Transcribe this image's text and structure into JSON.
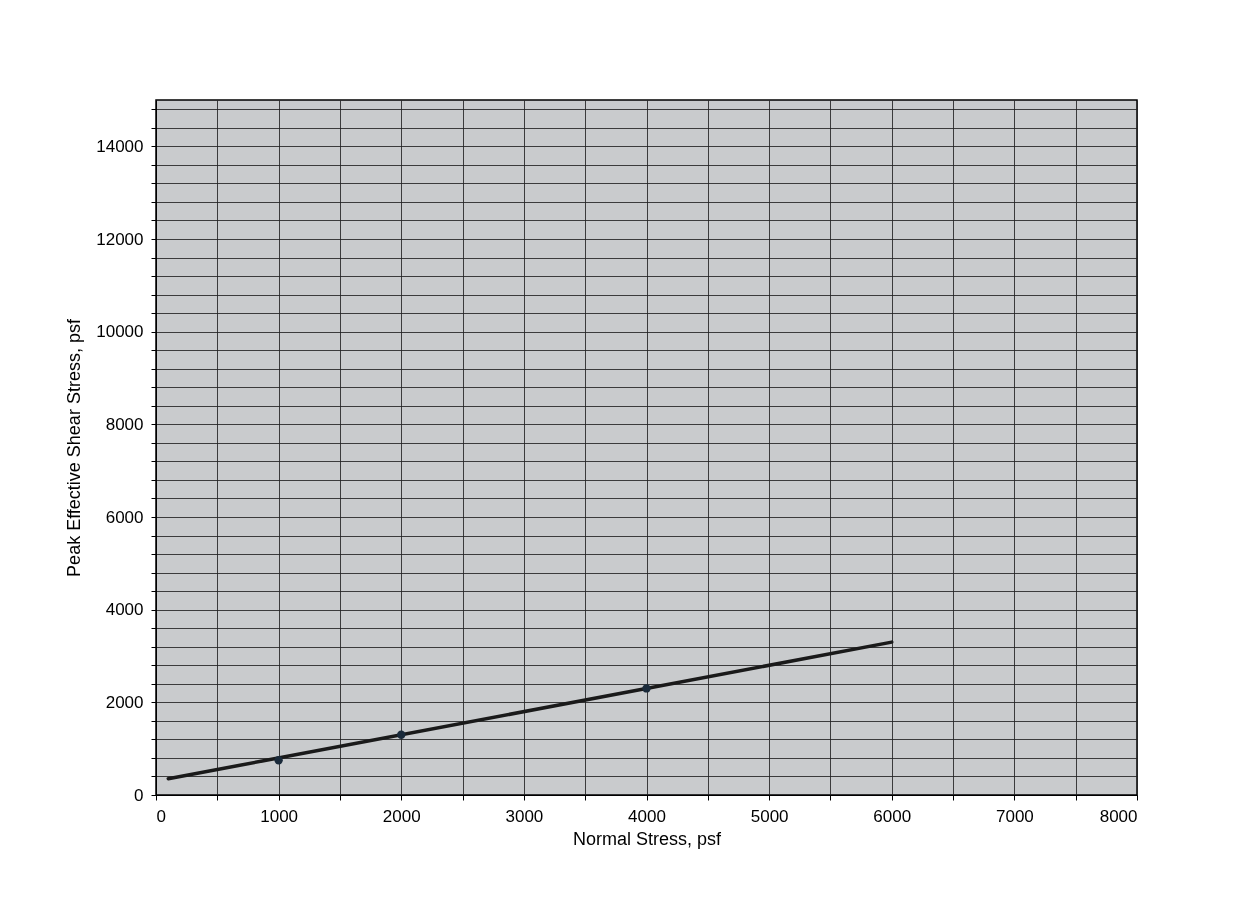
{
  "chart_data": {
    "type": "scatter",
    "xlabel": "Normal Stress, psf",
    "ylabel": "Peak Effective Shear Stress, psf",
    "xlim": [
      0,
      8000
    ],
    "ylim": [
      0,
      15000
    ],
    "xticks": [
      0,
      {
        "value": 500,
        "label": null
      },
      1000,
      {
        "value": 1500,
        "label": null
      },
      2000,
      {
        "value": 2500,
        "label": null
      },
      3000,
      {
        "value": 3500,
        "label": null
      },
      4000,
      {
        "value": 4500,
        "label": null
      },
      5000,
      {
        "value": 5500,
        "label": null
      },
      6000,
      {
        "value": 6500,
        "label": null
      },
      7000,
      {
        "value": 7500,
        "label": null
      },
      8000
    ],
    "yticks": [
      0,
      {
        "value": 400,
        "label": null
      },
      {
        "value": 800,
        "label": null
      },
      {
        "value": 1200,
        "label": null
      },
      {
        "value": 1600,
        "label": null
      },
      2000,
      {
        "value": 2400,
        "label": null
      },
      {
        "value": 2800,
        "label": null
      },
      {
        "value": 3200,
        "label": null
      },
      {
        "value": 3600,
        "label": null
      },
      4000,
      {
        "value": 4400,
        "label": null
      },
      {
        "value": 4800,
        "label": null
      },
      {
        "value": 5200,
        "label": null
      },
      {
        "value": 5600,
        "label": null
      },
      6000,
      {
        "value": 6400,
        "label": null
      },
      {
        "value": 6800,
        "label": null
      },
      {
        "value": 7200,
        "label": null
      },
      {
        "value": 7600,
        "label": null
      },
      8000,
      {
        "value": 8400,
        "label": null
      },
      {
        "value": 8800,
        "label": null
      },
      {
        "value": 9200,
        "label": null
      },
      {
        "value": 9600,
        "label": null
      },
      10000,
      {
        "value": 10400,
        "label": null
      },
      {
        "value": 10800,
        "label": null
      },
      {
        "value": 11200,
        "label": null
      },
      {
        "value": 11600,
        "label": null
      },
      12000,
      {
        "value": 12400,
        "label": null
      },
      {
        "value": 12800,
        "label": null
      },
      {
        "value": 13200,
        "label": null
      },
      {
        "value": 13600,
        "label": null
      },
      14000,
      {
        "value": 14400,
        "label": null
      },
      {
        "value": 14800,
        "label": null
      }
    ],
    "grid": true,
    "series": [
      {
        "type": "line",
        "color": "#1a1a1a",
        "x": [
          100,
          6000
        ],
        "values": [
          350,
          3300
        ]
      },
      {
        "color": "#1a2a3a",
        "marker": "circle",
        "x": [
          1000,
          2000,
          4000
        ],
        "values": [
          750,
          1300,
          2300
        ]
      }
    ]
  }
}
